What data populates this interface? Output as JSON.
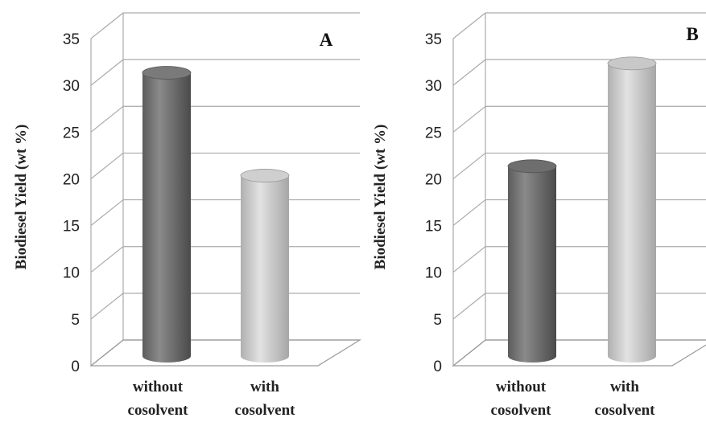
{
  "chart_data": [
    {
      "type": "bar",
      "panel_label": "A",
      "categories": [
        [
          "without",
          "cosolvent"
        ],
        [
          "with",
          "cosolvent"
        ]
      ],
      "values": [
        31,
        20
      ],
      "bar_colors": [
        "#7a7a7a",
        "#cfcfcf"
      ],
      "ylabel": "Biodiesel Yield (wt %)",
      "ylim": [
        0,
        35
      ],
      "yticks": [
        "0",
        "5",
        "10",
        "15",
        "20",
        "25",
        "30",
        "35"
      ],
      "grid": true
    },
    {
      "type": "bar",
      "panel_label": "B",
      "categories": [
        [
          "without",
          "cosolvent"
        ],
        [
          "with",
          "cosolvent"
        ]
      ],
      "values": [
        21,
        32
      ],
      "bar_colors": [
        "#6e6e6e",
        "#c8c8c8"
      ],
      "ylabel": "Biodiesel Yield (wt %)",
      "ylim": [
        0,
        35
      ],
      "yticks": [
        "0",
        "5",
        "10",
        "15",
        "20",
        "25",
        "30",
        "35"
      ],
      "grid": true
    }
  ]
}
